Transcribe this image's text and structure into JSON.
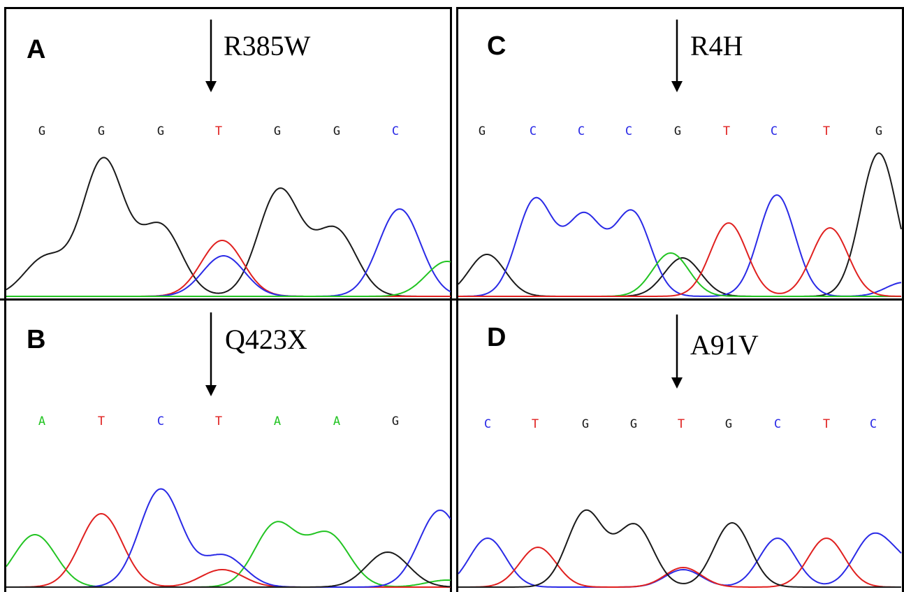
{
  "colors": {
    "G": "#1a1a1a",
    "T": "#e0201f",
    "C": "#2a2ae6",
    "A": "#22c422"
  },
  "panels": [
    {
      "id": "A",
      "letter": "A",
      "mutation": "R385W",
      "bases": [
        "G",
        "G",
        "G",
        "T",
        "G",
        "G",
        "C"
      ],
      "traces": [
        {
          "base": "G",
          "peaks": [
            [
              65,
              55
            ],
            [
              148,
              195
            ],
            [
              230,
              100
            ],
            [
              400,
              152
            ],
            [
              480,
              95
            ]
          ]
        },
        {
          "base": "T",
          "peaks": [
            [
              318,
              80
            ]
          ]
        },
        {
          "base": "C",
          "peaks": [
            [
              320,
              58
            ],
            [
              572,
              125
            ]
          ]
        },
        {
          "base": "A",
          "peaks": [
            [
              640,
              50
            ]
          ]
        }
      ]
    },
    {
      "id": "B",
      "letter": "B",
      "mutation": "Q423X",
      "bases": [
        "A",
        "T",
        "C",
        "T",
        "A",
        "A",
        "G"
      ],
      "traces": [
        {
          "base": "A",
          "peaks": [
            [
              50,
              75
            ],
            [
              395,
              90
            ],
            [
              470,
              75
            ],
            [
              640,
              10
            ]
          ]
        },
        {
          "base": "T",
          "peaks": [
            [
              145,
              105
            ],
            [
              318,
              25
            ]
          ]
        },
        {
          "base": "C",
          "peaks": [
            [
              230,
              140
            ],
            [
              320,
              45
            ],
            [
              630,
              110
            ]
          ]
        },
        {
          "base": "G",
          "peaks": [
            [
              555,
              50
            ]
          ]
        }
      ]
    },
    {
      "id": "C",
      "letter": "C",
      "mutation": "R4H",
      "bases": [
        "G",
        "C",
        "C",
        "C",
        "G",
        "T",
        "C",
        "T",
        "G"
      ],
      "traces": [
        {
          "base": "G",
          "peaks": [
            [
              697,
              60
            ],
            [
              977,
              55
            ],
            [
              1258,
              205
            ]
          ]
        },
        {
          "base": "C",
          "peaks": [
            [
              766,
              138
            ],
            [
              836,
              113
            ],
            [
              905,
              120
            ],
            [
              1112,
              145
            ],
            [
              1294,
              20
            ]
          ]
        },
        {
          "base": "A",
          "peaks": [
            [
              960,
              62
            ]
          ]
        },
        {
          "base": "T",
          "peaks": [
            [
              1043,
              105
            ],
            [
              1188,
              98
            ]
          ]
        }
      ]
    },
    {
      "id": "D",
      "letter": "D",
      "mutation": "A91V",
      "bases": [
        "C",
        "T",
        "G",
        "G",
        "T",
        "G",
        "C",
        "T",
        "C"
      ],
      "traces": [
        {
          "base": "C",
          "peaks": [
            [
              698,
              70
            ],
            [
              978,
              25
            ],
            [
              1113,
              70
            ],
            [
              1248,
              70
            ],
            [
              1294,
              30
            ]
          ]
        },
        {
          "base": "T",
          "peaks": [
            [
              770,
              57
            ],
            [
              978,
              28
            ],
            [
              1183,
              70
            ]
          ]
        },
        {
          "base": "G",
          "peaks": [
            [
              838,
              108
            ],
            [
              909,
              88
            ],
            [
              1048,
              92
            ]
          ]
        }
      ]
    }
  ]
}
